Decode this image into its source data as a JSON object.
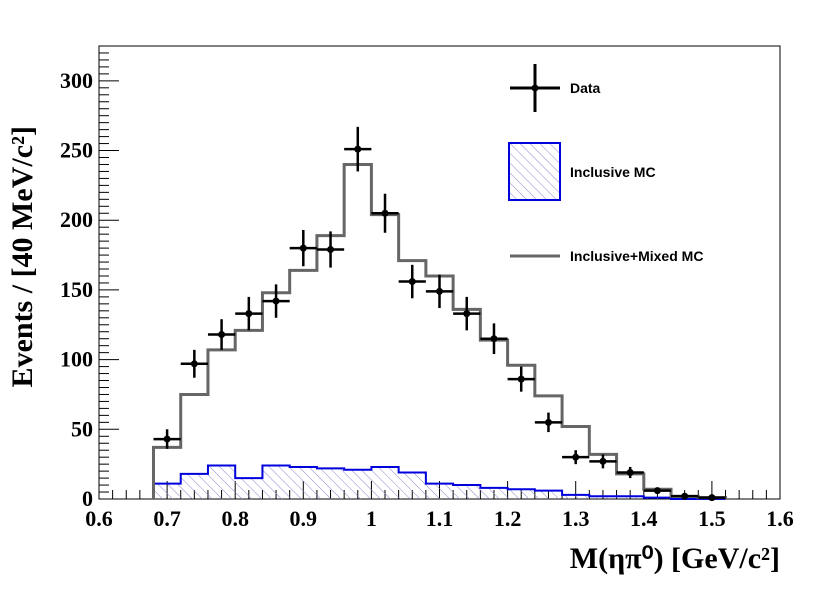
{
  "chart_data": {
    "type": "histogram",
    "xlabel": "M(ηπ⁰) [GeV/c²]",
    "ylabel": "Events / [40 MeV/c²]",
    "xlim": [
      0.6,
      1.6
    ],
    "ylim": [
      0,
      325
    ],
    "x_ticks": [
      {
        "value": 0.6,
        "label": "0.6"
      },
      {
        "value": 0.7,
        "label": "0.7"
      },
      {
        "value": 0.8,
        "label": "0.8"
      },
      {
        "value": 0.9,
        "label": "0.9"
      },
      {
        "value": 1.0,
        "label": "1"
      },
      {
        "value": 1.1,
        "label": "1.1"
      },
      {
        "value": 1.2,
        "label": "1.2"
      },
      {
        "value": 1.3,
        "label": "1.3"
      },
      {
        "value": 1.4,
        "label": "1.4"
      },
      {
        "value": 1.5,
        "label": "1.5"
      },
      {
        "value": 1.6,
        "label": "1.6"
      }
    ],
    "y_ticks": [
      {
        "value": 0,
        "label": "0"
      },
      {
        "value": 50,
        "label": "50"
      },
      {
        "value": 100,
        "label": "100"
      },
      {
        "value": 150,
        "label": "150"
      },
      {
        "value": 200,
        "label": "200"
      },
      {
        "value": 250,
        "label": "250"
      },
      {
        "value": 300,
        "label": "300"
      }
    ],
    "bin_edges": [
      0.68,
      0.72,
      0.76,
      0.8,
      0.84,
      0.88,
      0.92,
      0.96,
      1.0,
      1.04,
      1.08,
      1.12,
      1.16,
      1.2,
      1.24,
      1.28,
      1.32,
      1.36,
      1.4,
      1.44,
      1.48,
      1.52
    ],
    "series": [
      {
        "name": "Data",
        "style": "points-with-errors",
        "color": "#000000",
        "x": [
          0.7,
          0.74,
          0.78,
          0.82,
          0.86,
          0.9,
          0.94,
          0.98,
          1.02,
          1.06,
          1.1,
          1.14,
          1.18,
          1.22,
          1.26,
          1.3,
          1.34,
          1.38,
          1.42,
          1.46,
          1.5
        ],
        "y": [
          43,
          97,
          118,
          133,
          142,
          180,
          179,
          251,
          205,
          156,
          149,
          133,
          115,
          86,
          55,
          30,
          27,
          19,
          6,
          2,
          1
        ],
        "yerr": [
          7,
          10,
          11,
          12,
          12,
          13,
          13,
          16,
          14,
          12,
          12,
          12,
          11,
          9,
          7,
          5,
          5,
          4,
          2,
          1.4,
          1
        ]
      },
      {
        "name": "Inclusive MC",
        "style": "hatched-histogram",
        "color": "#0000dd",
        "fill": "#8888cc",
        "values": [
          11,
          18,
          24,
          15,
          24,
          23,
          22,
          21,
          23,
          19,
          11,
          10,
          8,
          7,
          6,
          3,
          2,
          2,
          1,
          0,
          0
        ]
      },
      {
        "name": "Inclusive+Mixed MC",
        "style": "step-histogram",
        "color": "#666666",
        "values": [
          37,
          75,
          107,
          121,
          148,
          164,
          189,
          240,
          204,
          171,
          160,
          136,
          114,
          96,
          74,
          52,
          32,
          18,
          7,
          2,
          1
        ]
      }
    ],
    "legend": {
      "position": "top-right",
      "entries": [
        {
          "label": "Data"
        },
        {
          "label": "Inclusive MC"
        },
        {
          "label": "Inclusive+Mixed MC"
        }
      ]
    }
  }
}
